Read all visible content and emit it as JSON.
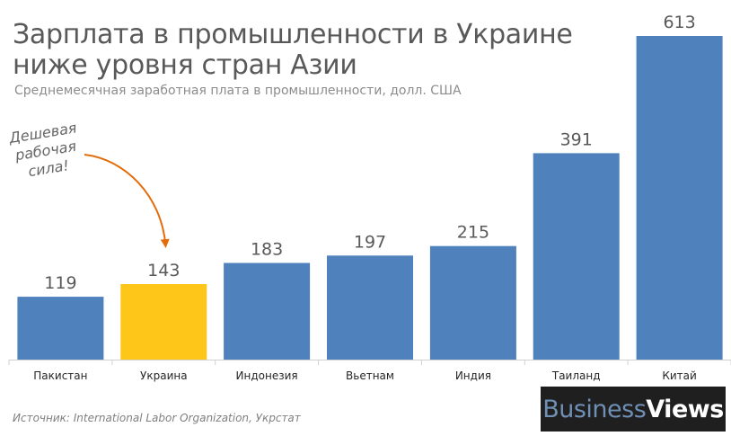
{
  "title": "Зарплата в промышленности в Украине ниже уровня стран Азии",
  "subtitle": "Среднемесячная заработная плата в промышленности, долл. США",
  "annotation": "Дешевая рабочая сила!",
  "source": "Источник: International Labor Organization, Укрстат",
  "logo": {
    "part1": "Business",
    "part2": "Views"
  },
  "colors": {
    "bar": "#4f81bd",
    "highlight": "#ffc61a",
    "arrow": "#e46c0a"
  },
  "chart_data": {
    "type": "bar",
    "title": "Зарплата в промышленности в Украине ниже уровня стран Азии",
    "subtitle": "Среднемесячная заработная плата в промышленности, долл. США",
    "categories": [
      "Пакистан",
      "Украина",
      "Индонезия",
      "Вьетнам",
      "Индия",
      "Таиланд",
      "Китай"
    ],
    "values": [
      119,
      143,
      183,
      197,
      215,
      391,
      613
    ],
    "highlight": "Украина",
    "xlabel": "",
    "ylabel": "",
    "ylim": [
      0,
      613
    ],
    "grid": false,
    "legend": "none"
  }
}
